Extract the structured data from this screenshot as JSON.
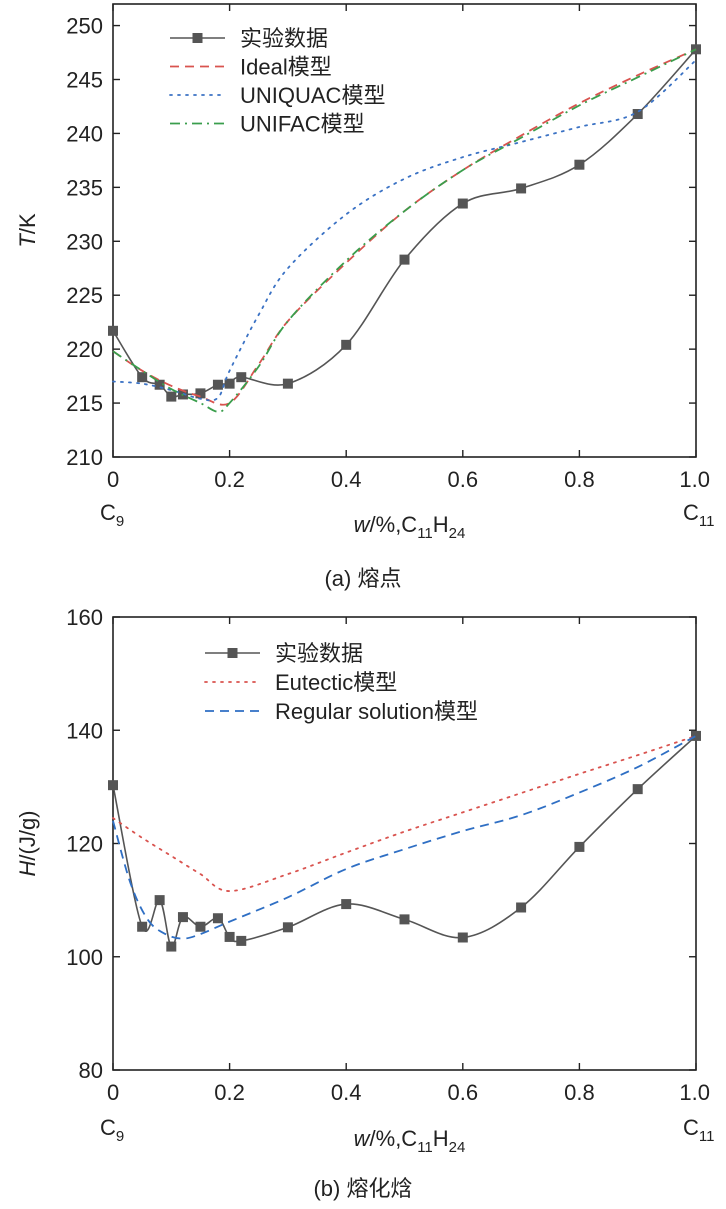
{
  "chart_data": [
    {
      "type": "line",
      "caption": "(a) 熔点",
      "ylabel_italic": "T",
      "ylabel_rest": "/K",
      "xlabel_italic": "w",
      "xlabel_rest": "/%,C",
      "xlabel_sub1": "11",
      "xlabel_mid": "H",
      "xlabel_sub2": "24",
      "left_end_label": "C",
      "left_end_sub": "9",
      "right_end_label": "C",
      "right_end_sub": "11",
      "xlim": [
        0,
        1
      ],
      "ylim": [
        210,
        252
      ],
      "xticks": [
        "0",
        "0.2",
        "0.4",
        "0.6",
        "0.8",
        "1.0"
      ],
      "xtick_values": [
        0,
        0.2,
        0.4,
        0.6,
        0.8,
        1.0
      ],
      "yticks": [
        "210",
        "215",
        "220",
        "225",
        "230",
        "235",
        "240",
        "245",
        "250"
      ],
      "ytick_values": [
        210,
        215,
        220,
        225,
        230,
        235,
        240,
        245,
        250
      ],
      "legend_position": "top-left",
      "series": [
        {
          "name": "实验数据",
          "style": "solid-marker",
          "color": "#555555",
          "x": [
            0,
            0.05,
            0.08,
            0.1,
            0.12,
            0.15,
            0.18,
            0.2,
            0.22,
            0.3,
            0.4,
            0.5,
            0.6,
            0.7,
            0.8,
            0.9,
            1.0
          ],
          "y": [
            221.7,
            217.4,
            216.7,
            215.6,
            215.8,
            215.9,
            216.7,
            216.8,
            217.4,
            216.8,
            220.4,
            228.3,
            233.5,
            234.9,
            237.1,
            241.8,
            247.8
          ]
        },
        {
          "name": "Ideal模型",
          "style": "dashed",
          "color": "#d9534f",
          "x": [
            0,
            0.05,
            0.1,
            0.15,
            0.2,
            0.25,
            0.3,
            0.4,
            0.5,
            0.6,
            0.7,
            0.8,
            0.9,
            1.0
          ],
          "y": [
            219.8,
            218.0,
            216.6,
            215.6,
            215.0,
            218.6,
            222.6,
            228.0,
            232.8,
            236.6,
            239.8,
            242.8,
            245.4,
            247.8
          ]
        },
        {
          "name": "UNIQUAC模型",
          "style": "dotted",
          "color": "#3b72c4",
          "x": [
            0,
            0.05,
            0.1,
            0.15,
            0.18,
            0.2,
            0.25,
            0.3,
            0.4,
            0.5,
            0.6,
            0.7,
            0.8,
            0.9,
            1.0
          ],
          "y": [
            217.0,
            216.8,
            216.2,
            215.4,
            215.5,
            218.0,
            223.2,
            227.5,
            232.5,
            235.8,
            237.8,
            239.2,
            240.6,
            242.0,
            246.8
          ]
        },
        {
          "name": "UNIFAC模型",
          "style": "dashdot",
          "color": "#3a9e4c",
          "x": [
            0,
            0.05,
            0.1,
            0.15,
            0.18,
            0.2,
            0.25,
            0.3,
            0.4,
            0.5,
            0.6,
            0.7,
            0.8,
            0.9,
            1.0
          ],
          "y": [
            219.8,
            218.0,
            216.3,
            215.0,
            214.2,
            215.0,
            218.4,
            222.6,
            228.2,
            232.8,
            236.6,
            239.6,
            242.6,
            245.2,
            247.8
          ]
        }
      ]
    },
    {
      "type": "line",
      "caption": "(b) 熔化焓",
      "ylabel_italic": "H",
      "ylabel_rest": "/(J/g)",
      "xlabel_italic": "w",
      "xlabel_rest": "/%,C",
      "xlabel_sub1": "11",
      "xlabel_mid": "H",
      "xlabel_sub2": "24",
      "left_end_label": "C",
      "left_end_sub": "9",
      "right_end_label": "C",
      "right_end_sub": "11",
      "xlim": [
        0,
        1
      ],
      "ylim": [
        80,
        160
      ],
      "xticks": [
        "0",
        "0.2",
        "0.4",
        "0.6",
        "0.8",
        "1.0"
      ],
      "xtick_values": [
        0,
        0.2,
        0.4,
        0.6,
        0.8,
        1.0
      ],
      "yticks": [
        "80",
        "100",
        "120",
        "140",
        "160"
      ],
      "ytick_values": [
        80,
        100,
        120,
        140,
        160
      ],
      "legend_position": "top-left",
      "series": [
        {
          "name": "实验数据",
          "style": "solid-marker",
          "color": "#555555",
          "x": [
            0,
            0.05,
            0.08,
            0.1,
            0.12,
            0.15,
            0.18,
            0.2,
            0.22,
            0.3,
            0.4,
            0.5,
            0.6,
            0.7,
            0.8,
            0.9,
            1.0
          ],
          "y": [
            130.3,
            105.3,
            110.0,
            101.8,
            107.0,
            105.3,
            106.8,
            103.5,
            102.8,
            105.2,
            109.3,
            106.6,
            103.4,
            108.7,
            119.4,
            129.6,
            139.0
          ]
        },
        {
          "name": "Eutectic模型",
          "style": "dotted",
          "color": "#d9534f",
          "x": [
            0,
            0.05,
            0.1,
            0.15,
            0.2,
            0.3,
            0.4,
            0.5,
            0.6,
            0.7,
            0.8,
            0.9,
            1.0
          ],
          "y": [
            124.5,
            121.0,
            117.8,
            114.6,
            111.6,
            114.6,
            118.4,
            122.1,
            125.5,
            128.9,
            132.3,
            135.6,
            139.0
          ]
        },
        {
          "name": "Regular solution模型",
          "style": "dashed",
          "color": "#2f6fc4",
          "x": [
            0,
            0.03,
            0.06,
            0.09,
            0.12,
            0.15,
            0.2,
            0.3,
            0.4,
            0.5,
            0.6,
            0.7,
            0.8,
            0.9,
            1.0
          ],
          "y": [
            124.0,
            113.0,
            106.5,
            104.0,
            103.2,
            104.0,
            106.2,
            110.5,
            115.5,
            119.0,
            122.2,
            125.0,
            129.0,
            133.5,
            139.0
          ]
        }
      ]
    }
  ]
}
